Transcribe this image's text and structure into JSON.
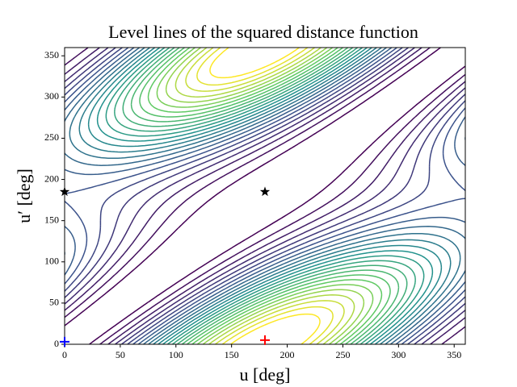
{
  "chart_data": {
    "type": "contour",
    "title": "Level lines of the squared distance function",
    "xlabel": "u [deg]",
    "ylabel": "u′ [deg]",
    "xlim": [
      0,
      360
    ],
    "ylim": [
      0,
      360
    ],
    "xticks": [
      0,
      50,
      100,
      150,
      200,
      250,
      300,
      350
    ],
    "yticks": [
      0,
      50,
      100,
      150,
      200,
      250,
      300,
      350
    ],
    "colormap": "viridis",
    "levels": [
      0.12,
      0.24,
      0.36,
      0.48,
      0.6,
      0.72,
      0.84,
      0.96,
      1.08,
      1.2,
      1.32,
      1.44,
      1.56,
      1.68,
      1.8,
      1.92,
      2.04,
      2.16,
      2.28,
      2.4,
      2.52,
      2.64,
      2.76,
      2.88,
      3.0
    ],
    "points": [
      {
        "x": 0,
        "y": 185,
        "marker": "star",
        "color": "#000000"
      },
      {
        "x": 180,
        "y": 185,
        "marker": "star",
        "color": "#000000"
      },
      {
        "x": 180,
        "y": 5,
        "marker": "plus",
        "color": "#ff0000"
      },
      {
        "x": 0,
        "y": 3,
        "marker": "plus",
        "color": "#0000ff"
      }
    ]
  }
}
